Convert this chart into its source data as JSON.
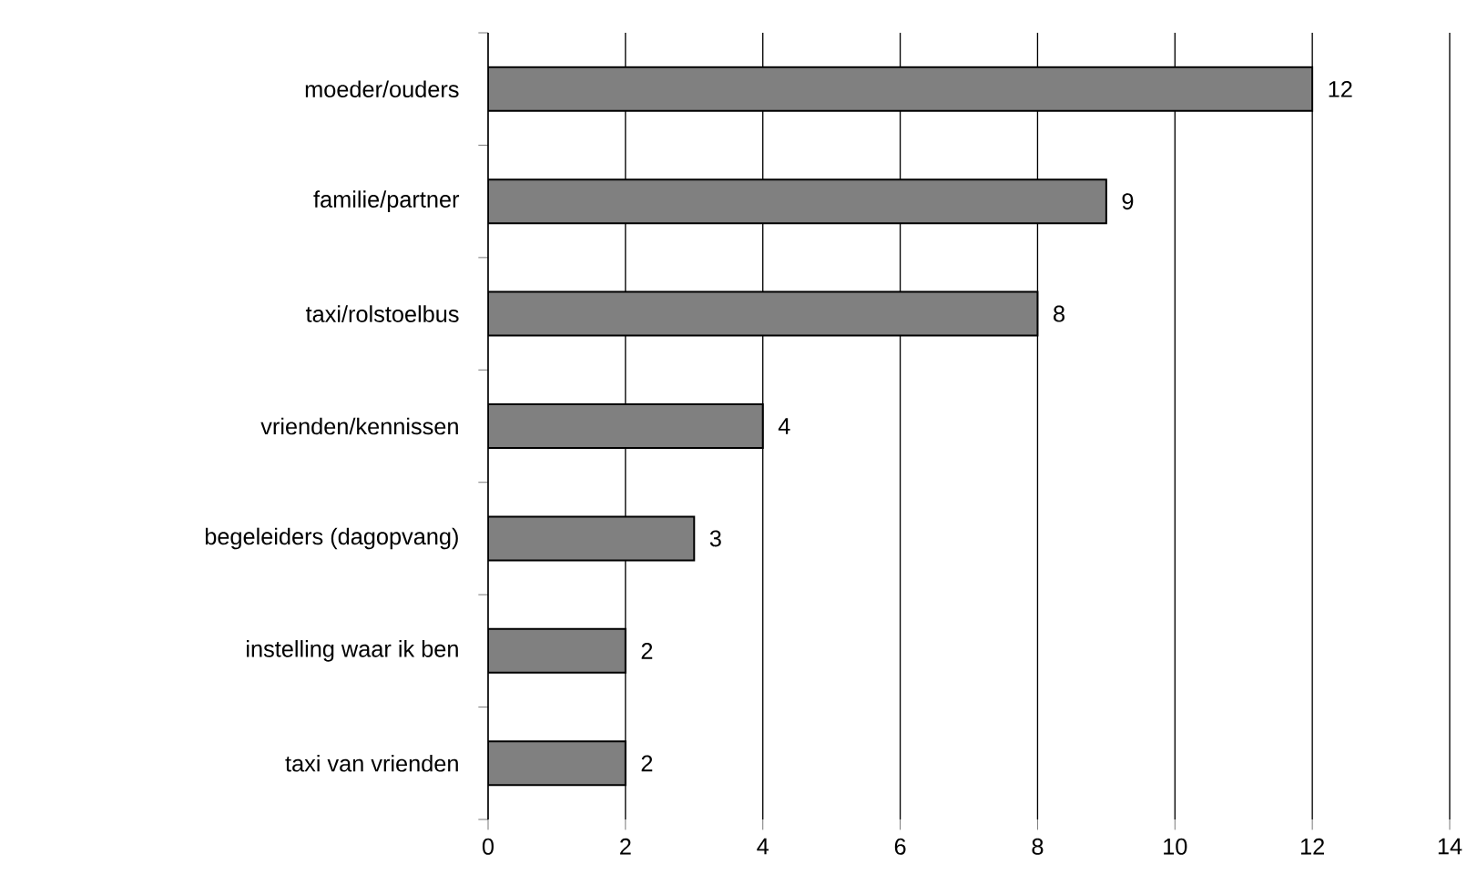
{
  "chart_data": {
    "type": "bar",
    "orientation": "horizontal",
    "categories": [
      "moeder/ouders",
      "familie/partner",
      "taxi/rolstoelbus",
      "vrienden/kennissen",
      "begeleiders (dagopvang)",
      "instelling waar ik ben",
      "taxi van vrienden"
    ],
    "values": [
      12,
      9,
      8,
      4,
      3,
      2,
      2
    ],
    "color": "#808080",
    "xlim": [
      0,
      14
    ],
    "xticks": [
      0,
      2,
      4,
      6,
      8,
      10,
      12,
      14
    ],
    "grid": "x",
    "data_labels": true
  }
}
